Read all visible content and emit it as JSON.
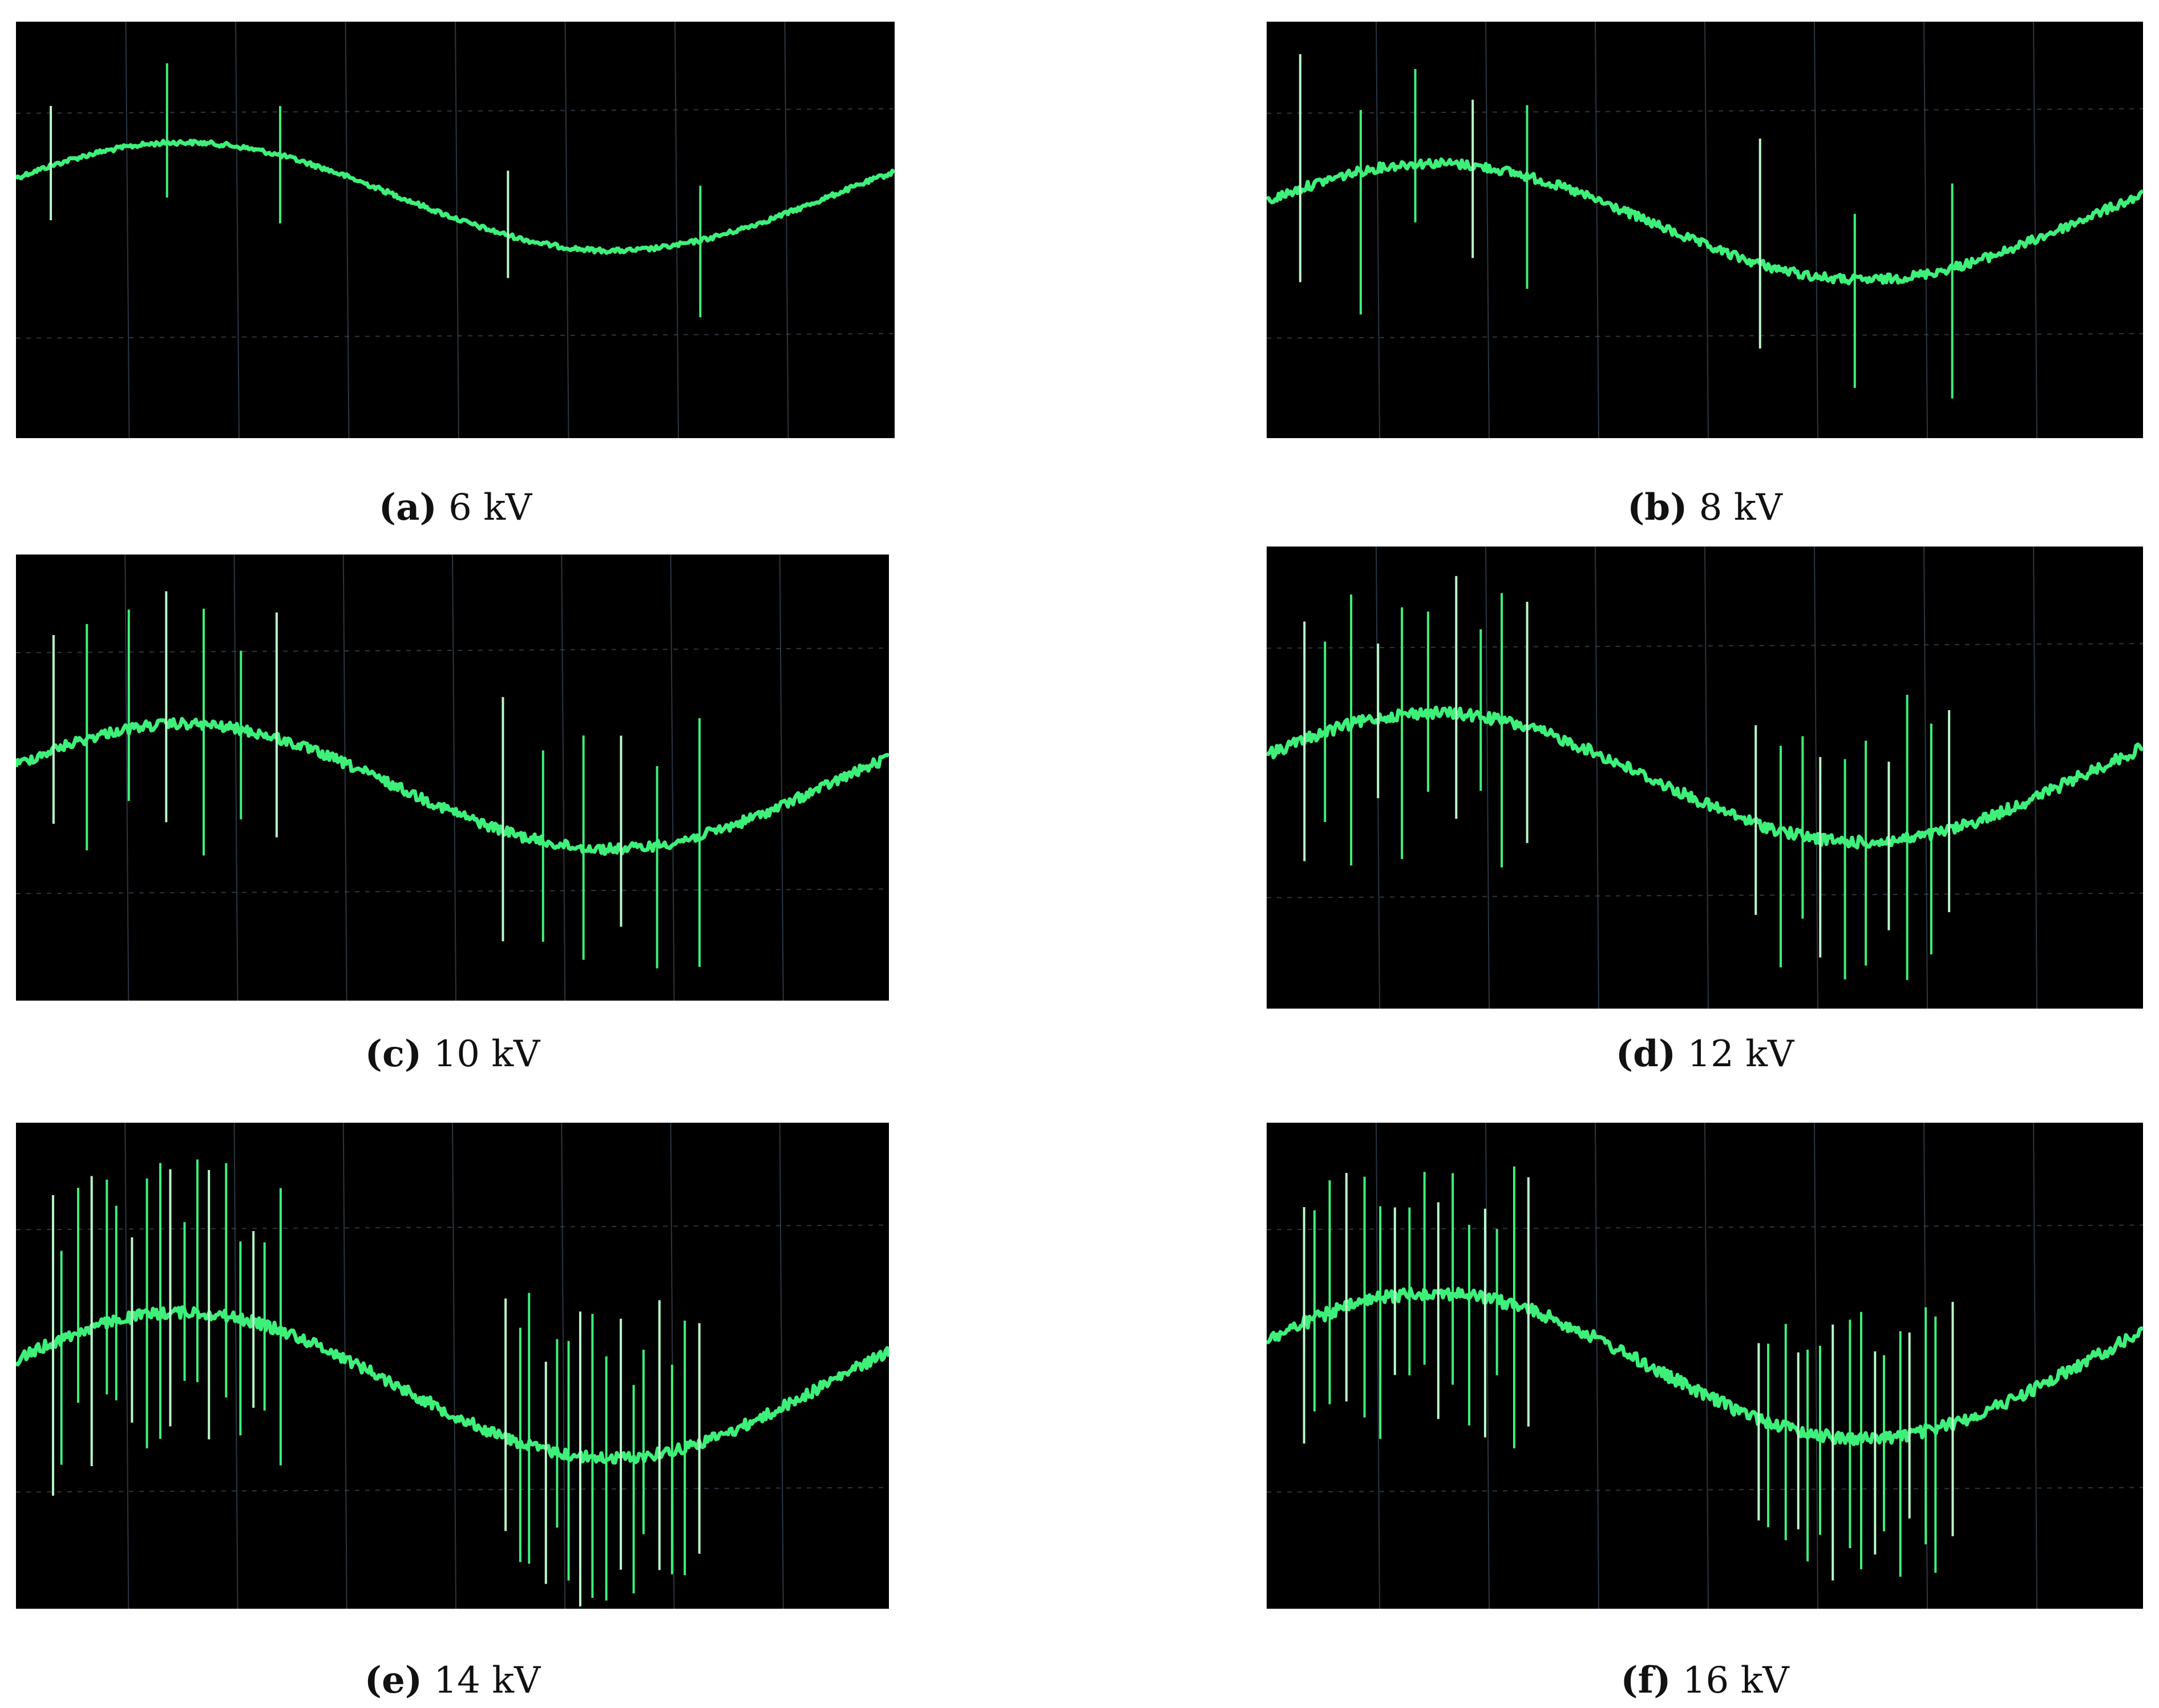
{
  "figure": {
    "trace_color": "#3ef07a",
    "grid_color": "#4a5a6a",
    "background": "#000000",
    "panels": [
      {
        "letter": "(a)",
        "voltage": "6 kV",
        "pulses_peak": 3,
        "pulses_trough": 2
      },
      {
        "letter": "(b)",
        "voltage": "8 kV",
        "pulses_peak": 5,
        "pulses_trough": 3
      },
      {
        "letter": "(c)",
        "voltage": "10 kV",
        "pulses_peak": 7,
        "pulses_trough": 6
      },
      {
        "letter": "(d)",
        "voltage": "12 kV",
        "pulses_peak": 10,
        "pulses_trough": 10
      },
      {
        "letter": "(e)",
        "voltage": "14 kV",
        "pulses_peak": 18,
        "pulses_trough": 16
      },
      {
        "letter": "(f)",
        "voltage": "16 kV",
        "pulses_peak": 16,
        "pulses_trough": 16
      }
    ]
  }
}
